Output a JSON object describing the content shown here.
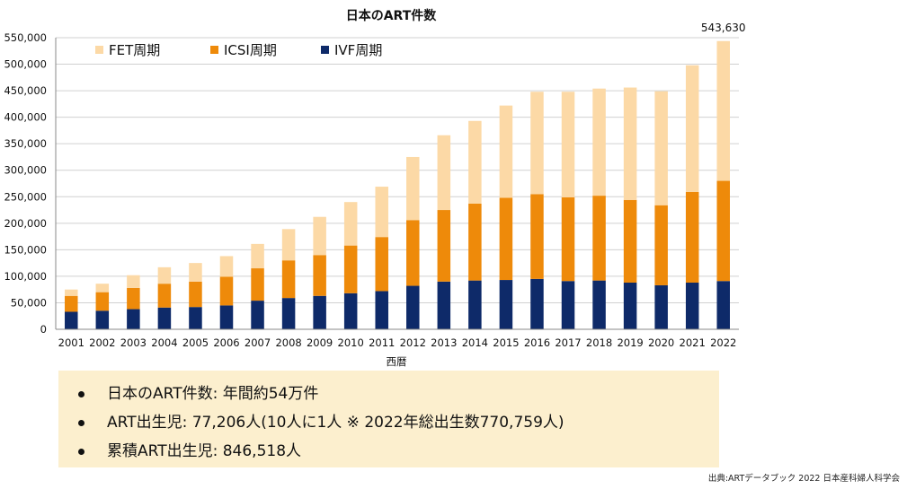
{
  "chart_data": {
    "type": "bar",
    "stacked": true,
    "title": "日本のART件数",
    "xlabel": "西暦",
    "ylabel": "",
    "ylim": [
      0,
      550000
    ],
    "yticks": [
      0,
      50000,
      100000,
      150000,
      200000,
      250000,
      300000,
      350000,
      400000,
      450000,
      500000,
      550000
    ],
    "ytick_labels": [
      "0",
      "50,000",
      "100,000",
      "150,000",
      "200,000",
      "250,000",
      "300,000",
      "350,000",
      "400,000",
      "450,000",
      "500,000",
      "550,000"
    ],
    "categories": [
      "2001",
      "2002",
      "2003",
      "2004",
      "2005",
      "2006",
      "2007",
      "2008",
      "2009",
      "2010",
      "2011",
      "2012",
      "2013",
      "2014",
      "2015",
      "2016",
      "2017",
      "2018",
      "2019",
      "2020",
      "2021",
      "2022"
    ],
    "series": [
      {
        "name": "IVF周期",
        "color": "#0e2a69",
        "values": [
          33000,
          35000,
          38000,
          41000,
          42000,
          45000,
          54000,
          59000,
          63000,
          68000,
          72000,
          82000,
          90000,
          92000,
          93000,
          95000,
          91000,
          92000,
          88000,
          83000,
          88000,
          91000
        ]
      },
      {
        "name": "ICSI周期",
        "color": "#ee8a0a",
        "values": [
          30000,
          35000,
          40000,
          45000,
          48000,
          54000,
          61000,
          71000,
          77000,
          90000,
          102000,
          124000,
          135000,
          145000,
          155000,
          160000,
          158000,
          160000,
          156000,
          151000,
          171000,
          189000
        ]
      },
      {
        "name": "FET周期",
        "color": "#fcd9a6",
        "values": [
          12000,
          16000,
          24000,
          31000,
          35000,
          39000,
          46000,
          59000,
          72000,
          82000,
          95000,
          119000,
          141000,
          156000,
          174000,
          193000,
          199000,
          202000,
          212000,
          215000,
          239000,
          263630
        ]
      }
    ],
    "legend_order": [
      "FET周期",
      "ICSI周期",
      "IVF周期"
    ],
    "legend_position": "top-left",
    "annotations": [
      {
        "category": "2022",
        "label": "543,630"
      }
    ],
    "grid": true
  },
  "summary": {
    "items": [
      "日本のART件数: 年間約54万件",
      "ART出生児: 77,206人(10人に1人 ※ 2022年総出生数770,759人)",
      "累積ART出生児: 846,518人"
    ]
  },
  "source_note": "出典:ARTデータブック 2022 日本産科婦人科学会",
  "colors": {
    "gridline": "#d0d0d0",
    "axis": "#888888",
    "summary_bg": "#fcefce"
  }
}
